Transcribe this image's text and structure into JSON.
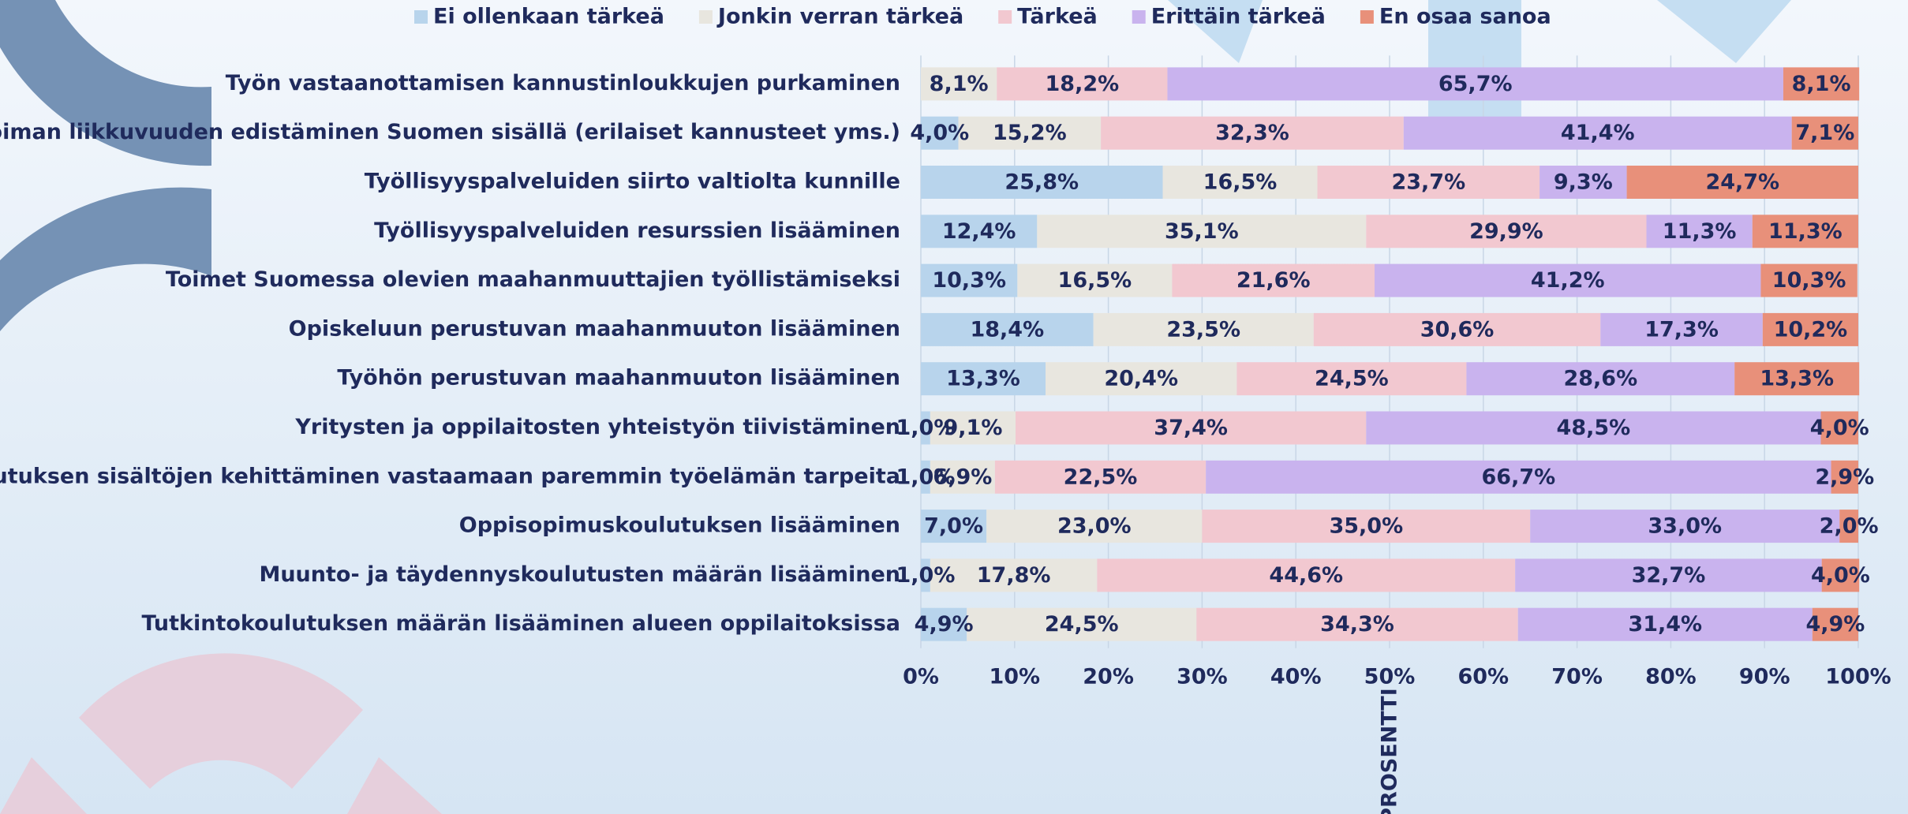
{
  "chart_data": {
    "type": "stacked-bar-horizontal",
    "x_axis_label": "PROSENTTI",
    "categories": [
      "Työn vastaanottamisen kannustinloukkujen purkaminen",
      "Työvoiman liikkuvuuden edistäminen Suomen sisällä (erilaiset kannusteet yms.)",
      "Työllisyyspalveluiden siirto valtiolta kunnille",
      "Työllisyyspalveluiden resurssien lisääminen",
      "Toimet Suomessa olevien maahanmuuttajien työllistämiseksi",
      "Opiskeluun perustuvan maahanmuuton lisääminen",
      "Työhön perustuvan maahanmuuton lisääminen",
      "Yritysten ja oppilaitosten yhteistyön tiivistäminen",
      "Koulutuksen sisältöjen kehittäminen vastaamaan paremmin työelämän tarpeita",
      "Oppisopimuskoulutuksen lisääminen",
      "Muunto- ja täydennyskoulutusten määrän lisääminen",
      "Tutkintokoulutuksen määrän lisääminen alueen oppilaitoksissa"
    ],
    "series": [
      {
        "name": "Ei ollenkaan tärkeä",
        "color": "#b8d4ec",
        "values": [
          null,
          4.0,
          25.8,
          12.4,
          10.3,
          18.4,
          13.3,
          1.0,
          1.0,
          7.0,
          1.0,
          4.9
        ],
        "value_labels": [
          null,
          "4,0%",
          "25,8%",
          "12,4%",
          "10,3%",
          "18,4%",
          "13,3%",
          "1,0%",
          "1,0%",
          "7,0%",
          "1,0%",
          "4,9%"
        ]
      },
      {
        "name": "Jonkin verran tärkeä",
        "color": "#e8e6df",
        "values": [
          8.1,
          15.2,
          16.5,
          35.1,
          16.5,
          23.5,
          20.4,
          9.1,
          6.9,
          23.0,
          17.8,
          24.5
        ],
        "value_labels": [
          "8,1%",
          "15,2%",
          "16,5%",
          "35,1%",
          "16,5%",
          "23,5%",
          "20,4%",
          "9,1%",
          "6,9%",
          "23,0%",
          "17,8%",
          "24,5%"
        ]
      },
      {
        "name": "Tärkeä",
        "color": "#f2c8d0",
        "values": [
          18.2,
          32.3,
          23.7,
          29.9,
          21.6,
          30.6,
          24.5,
          37.4,
          22.5,
          35.0,
          44.6,
          34.3
        ],
        "value_labels": [
          "18,2%",
          "32,3%",
          "23,7%",
          "29,9%",
          "21,6%",
          "30,6%",
          "24,5%",
          "37,4%",
          "22,5%",
          "35,0%",
          "44,6%",
          "34,3%"
        ]
      },
      {
        "name": "Erittäin tärkeä",
        "color": "#c9b3ee",
        "values": [
          65.7,
          41.4,
          9.3,
          11.3,
          41.2,
          17.3,
          28.6,
          48.5,
          66.7,
          33.0,
          32.7,
          31.4
        ],
        "value_labels": [
          "65,7%",
          "41,4%",
          "9,3%",
          "11,3%",
          "41,2%",
          "17,3%",
          "28,6%",
          "48,5%",
          "66,7%",
          "33,0%",
          "32,7%",
          "31,4%"
        ]
      },
      {
        "name": "En osaa sanoa",
        "color": "#e8907a",
        "values": [
          8.1,
          7.1,
          24.7,
          11.3,
          10.3,
          10.2,
          13.3,
          4.0,
          2.9,
          2.0,
          4.0,
          4.9
        ],
        "value_labels": [
          "8,1%",
          "7,1%",
          "24,7%",
          "11,3%",
          "10,3%",
          "10,2%",
          "13,3%",
          "4,0%",
          "2,9%",
          "2,0%",
          "4,0%",
          "4,9%"
        ]
      }
    ],
    "xlim": [
      0,
      100
    ],
    "xticks": [
      {
        "value": 0,
        "label": "0%"
      },
      {
        "value": 10,
        "label": "10%"
      },
      {
        "value": 20,
        "label": "20%"
      },
      {
        "value": 30,
        "label": "30%"
      },
      {
        "value": 40,
        "label": "40%"
      },
      {
        "value": 50,
        "label": "50%"
      },
      {
        "value": 60,
        "label": "60%"
      },
      {
        "value": 70,
        "label": "70%"
      },
      {
        "value": 80,
        "label": "80%"
      },
      {
        "value": 90,
        "label": "90%"
      },
      {
        "value": 100,
        "label": "100%"
      }
    ],
    "grid": true,
    "legend": "top"
  }
}
